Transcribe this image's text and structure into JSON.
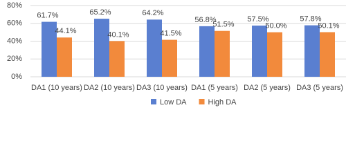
{
  "chart_data": {
    "type": "bar",
    "categories": [
      "DA1 (10 years)",
      "DA2 (10 years)",
      "DA3 (10 years)",
      "DA1 (5 years)",
      "DA2 (5 years)",
      "DA3 (5 years)"
    ],
    "series": [
      {
        "name": "Low DA",
        "color": "#5a7fd0",
        "values": [
          61.7,
          65.2,
          64.2,
          56.8,
          57.5,
          57.8
        ],
        "value_labels": [
          "61.7%",
          "65.2%",
          "64.2%",
          "56.8%",
          "57.5%",
          "57.8%"
        ]
      },
      {
        "name": "High DA",
        "color": "#f28a3c",
        "values": [
          44.1,
          40.1,
          41.5,
          51.5,
          50.0,
          50.1
        ],
        "value_labels": [
          "44.1%",
          "40.1%",
          "41.5%",
          "51.5%",
          "50.0%",
          "50.1%"
        ]
      }
    ],
    "ylim": [
      0,
      80
    ],
    "yticks": [
      {
        "value": 0,
        "label": "0%"
      },
      {
        "value": 20,
        "label": "20%"
      },
      {
        "value": 40,
        "label": "40%"
      },
      {
        "value": 60,
        "label": "60%"
      },
      {
        "value": 80,
        "label": "80%"
      }
    ],
    "grid": true,
    "legend": "bottom"
  }
}
